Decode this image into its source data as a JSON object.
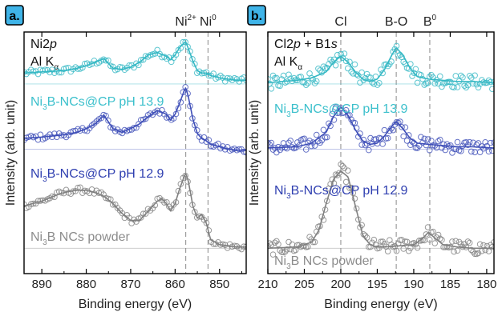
{
  "chart_data": [
    {
      "panel_label": "a.",
      "type": "line",
      "xlabel": "Binding energy (eV)",
      "ylabel": "Intensity (arb. unit)",
      "xlim": [
        894,
        844
      ],
      "ylim": [
        0,
        10
      ],
      "x_reversed": true,
      "x_ticks": [
        890,
        880,
        870,
        860,
        850
      ],
      "x_tick_labels": [
        "890",
        "880",
        "870",
        "860",
        "850"
      ],
      "corner_text": [
        {
          "main": "Ni2",
          "italic": "p"
        },
        {
          "main": "Al K",
          "sub": "α"
        }
      ],
      "reference_lines": [
        {
          "x": 857.6,
          "main": "Ni",
          "sup": "2+"
        },
        {
          "x": 852.6,
          "main": "Ni",
          "sup": "0"
        }
      ],
      "series": [
        {
          "color": "#35b8c4",
          "label": {
            "pre": "Ni",
            "sub": "3",
            "post": "B-NCs@CP pH 13.9"
          },
          "base": 7.6,
          "x": [
            894,
            890,
            885,
            882,
            880,
            878,
            876,
            874,
            872,
            870,
            868,
            866,
            864,
            862,
            861,
            860,
            859,
            858,
            857.6,
            857,
            856,
            855,
            854,
            853,
            852,
            850,
            848,
            846,
            844
          ],
          "y": [
            8.3,
            8.35,
            8.4,
            8.5,
            8.6,
            8.75,
            8.9,
            8.5,
            8.45,
            8.55,
            8.75,
            9.05,
            9.15,
            9.0,
            8.85,
            9.05,
            9.35,
            9.55,
            9.6,
            9.3,
            8.8,
            8.4,
            8.3,
            8.3,
            8.2,
            8.1,
            8.05,
            8.0,
            8.0
          ]
        },
        {
          "color": "#3f4fb8",
          "label": {
            "pre": "Ni",
            "sub": "3",
            "post": "B-NCs@CP pH 12.9"
          },
          "base": 4.9,
          "x": [
            894,
            890,
            885,
            882,
            880,
            878,
            876,
            874,
            872,
            870,
            868,
            866,
            864,
            862,
            861,
            860,
            859,
            858,
            857.6,
            857,
            856,
            855,
            854,
            853,
            852,
            850,
            848,
            846,
            844
          ],
          "y": [
            5.6,
            5.65,
            5.75,
            5.85,
            6.0,
            6.2,
            6.55,
            6.0,
            5.85,
            6.0,
            6.2,
            6.5,
            6.75,
            6.6,
            6.35,
            6.6,
            7.05,
            7.55,
            7.7,
            7.3,
            6.4,
            5.8,
            5.6,
            5.5,
            5.35,
            5.25,
            5.15,
            5.1,
            5.1
          ]
        },
        {
          "color": "#808080",
          "label": {
            "pre": "Ni",
            "sub": "3",
            "post": "B NCs powder"
          },
          "base": 0.8,
          "x": [
            894,
            890,
            886,
            884,
            882,
            880,
            878,
            876,
            874,
            872,
            870,
            868,
            866,
            864,
            863,
            862,
            861,
            860,
            859,
            858,
            857.6,
            857,
            856,
            855,
            854,
            853,
            852,
            850,
            848,
            846,
            844
          ],
          "y": [
            2.8,
            3.0,
            3.3,
            3.4,
            3.45,
            3.45,
            3.35,
            3.2,
            2.9,
            2.5,
            2.2,
            2.2,
            2.6,
            3.0,
            3.1,
            2.9,
            2.6,
            2.9,
            3.5,
            4.0,
            4.15,
            3.8,
            2.8,
            2.3,
            2.45,
            2.1,
            1.4,
            1.2,
            1.15,
            1.1,
            1.1
          ]
        }
      ]
    },
    {
      "panel_label": "b.",
      "type": "line",
      "xlabel": "Binding energy (eV)",
      "ylabel": "Intensity (arb. unit)",
      "xlim": [
        210,
        179
      ],
      "ylim": [
        0,
        10
      ],
      "x_reversed": true,
      "x_ticks": [
        210,
        205,
        200,
        195,
        190,
        185,
        180
      ],
      "x_tick_labels": [
        "210",
        "205",
        "200",
        "195",
        "190",
        "185",
        "180"
      ],
      "corner_text": [
        {
          "main": "Cl2",
          "italic": "p",
          "post": " + B1",
          "italic2": "s"
        },
        {
          "main": "Al K",
          "sub": "α"
        }
      ],
      "reference_lines": [
        {
          "x": 200.0,
          "main": "Cl"
        },
        {
          "x": 192.4,
          "main": "B-O"
        },
        {
          "x": 187.8,
          "main": "B",
          "sup": "0"
        }
      ],
      "series": [
        {
          "color": "#35b8c4",
          "label": {
            "pre": "Ni",
            "sub": "3",
            "post": "B-NCs@CP pH 13.9"
          },
          "base": 7.6,
          "x": [
            210,
            206,
            204,
            202,
            201,
            200,
            199,
            198,
            197,
            196,
            195,
            194,
            193,
            192.4,
            191.5,
            190.5,
            189.5,
            188,
            186,
            184,
            182,
            179
          ],
          "y": [
            7.9,
            8.0,
            8.1,
            8.35,
            8.75,
            9.0,
            8.75,
            8.35,
            8.05,
            7.95,
            8.05,
            8.45,
            9.05,
            9.35,
            9.05,
            8.5,
            8.15,
            8.05,
            8.0,
            7.95,
            7.95,
            7.9
          ]
        },
        {
          "color": "#3f4fb8",
          "label": {
            "pre": "Ni",
            "sub": "3",
            "post": "B-NCs@CP pH 12.9"
          },
          "base": 4.9,
          "x": [
            210,
            206,
            204,
            202,
            201,
            200,
            199,
            198,
            197,
            196,
            195,
            194,
            193,
            192.4,
            191.5,
            190.5,
            189.5,
            188,
            186,
            184,
            182,
            179
          ],
          "y": [
            5.2,
            5.25,
            5.4,
            5.85,
            6.5,
            6.9,
            6.55,
            5.95,
            5.5,
            5.35,
            5.4,
            5.7,
            6.1,
            6.3,
            6.0,
            5.6,
            5.4,
            5.35,
            5.3,
            5.25,
            5.25,
            5.2
          ]
        },
        {
          "color": "#808080",
          "label": {
            "pre": "Ni",
            "sub": "3",
            "post": "B NCs powder"
          },
          "base": 0.8,
          "x": [
            210,
            206,
            204,
            203,
            202,
            201,
            200,
            199,
            198,
            197,
            196,
            195,
            194,
            192,
            190,
            189,
            188,
            187,
            186,
            184,
            182,
            179
          ],
          "y": [
            1.05,
            1.1,
            1.3,
            1.8,
            2.9,
            3.9,
            4.25,
            4.0,
            2.8,
            1.6,
            1.2,
            1.1,
            1.1,
            1.15,
            1.2,
            1.4,
            1.7,
            1.45,
            1.2,
            1.1,
            1.05,
            1.05
          ]
        }
      ]
    }
  ]
}
